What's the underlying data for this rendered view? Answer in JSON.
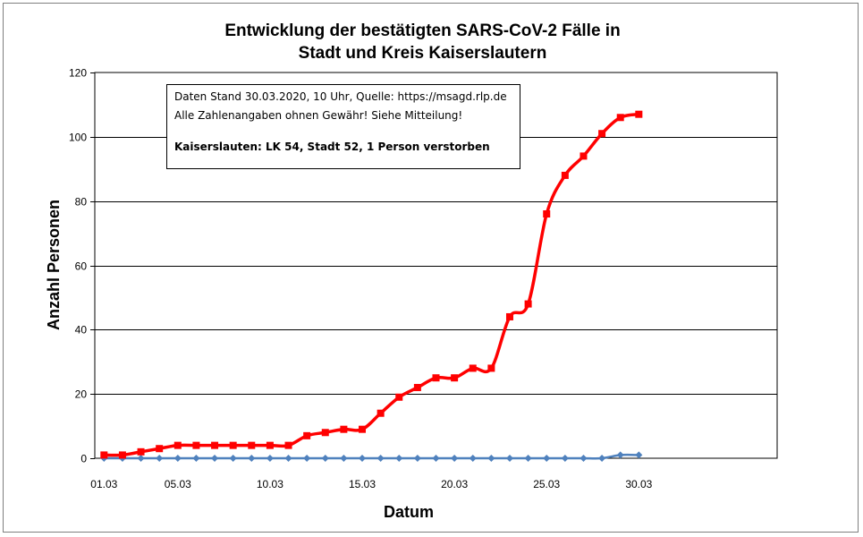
{
  "chart_data": {
    "type": "line",
    "title_lines": [
      "Entwicklung der bestätigten SARS-CoV-2 Fälle in",
      "Stadt und Kreis Kaiserslautern"
    ],
    "xlabel": "Datum",
    "ylabel": "Anzahl Personen",
    "ylim": [
      0,
      120
    ],
    "yticks": [
      0,
      20,
      40,
      60,
      80,
      100,
      120
    ],
    "grid": true,
    "x_day_range": [
      1,
      37
    ],
    "xtick_labels": [
      {
        "day": 1,
        "label": "01.03"
      },
      {
        "day": 5,
        "label": "05.03"
      },
      {
        "day": 10,
        "label": "10.03"
      },
      {
        "day": 15,
        "label": "15.03"
      },
      {
        "day": 20,
        "label": "20.03"
      },
      {
        "day": 25,
        "label": "25.03"
      },
      {
        "day": 30,
        "label": "30.03"
      }
    ],
    "x": [
      1,
      2,
      3,
      4,
      5,
      6,
      7,
      8,
      9,
      10,
      11,
      12,
      13,
      14,
      15,
      16,
      17,
      18,
      19,
      20,
      21,
      22,
      23,
      24,
      25,
      26,
      27,
      28,
      29,
      30
    ],
    "series": [
      {
        "color": "#ff0000",
        "marker": "square",
        "values": [
          1,
          1,
          2,
          3,
          4,
          4,
          4,
          4,
          4,
          4,
          4,
          7,
          8,
          9,
          9,
          14,
          19,
          22,
          25,
          25,
          28,
          28,
          44,
          48,
          76,
          88,
          94,
          101,
          106,
          107
        ]
      },
      {
        "color": "#4f81bd",
        "marker": "diamond",
        "values": [
          0,
          0,
          0,
          0,
          0,
          0,
          0,
          0,
          0,
          0,
          0,
          0,
          0,
          0,
          0,
          0,
          0,
          0,
          0,
          0,
          0,
          0,
          0,
          0,
          0,
          0,
          0,
          0,
          1,
          1
        ]
      }
    ],
    "annotation": {
      "lines": [
        "Daten Stand 30.03.2020, 10 Uhr, Quelle: https://msagd.rlp.de",
        "Alle Zahlenangaben ohnen Gewähr! Siehe Mitteilung!",
        "",
        "Kaiserslauten: LK 54, Stadt 52, 1 Person verstorben"
      ]
    }
  }
}
